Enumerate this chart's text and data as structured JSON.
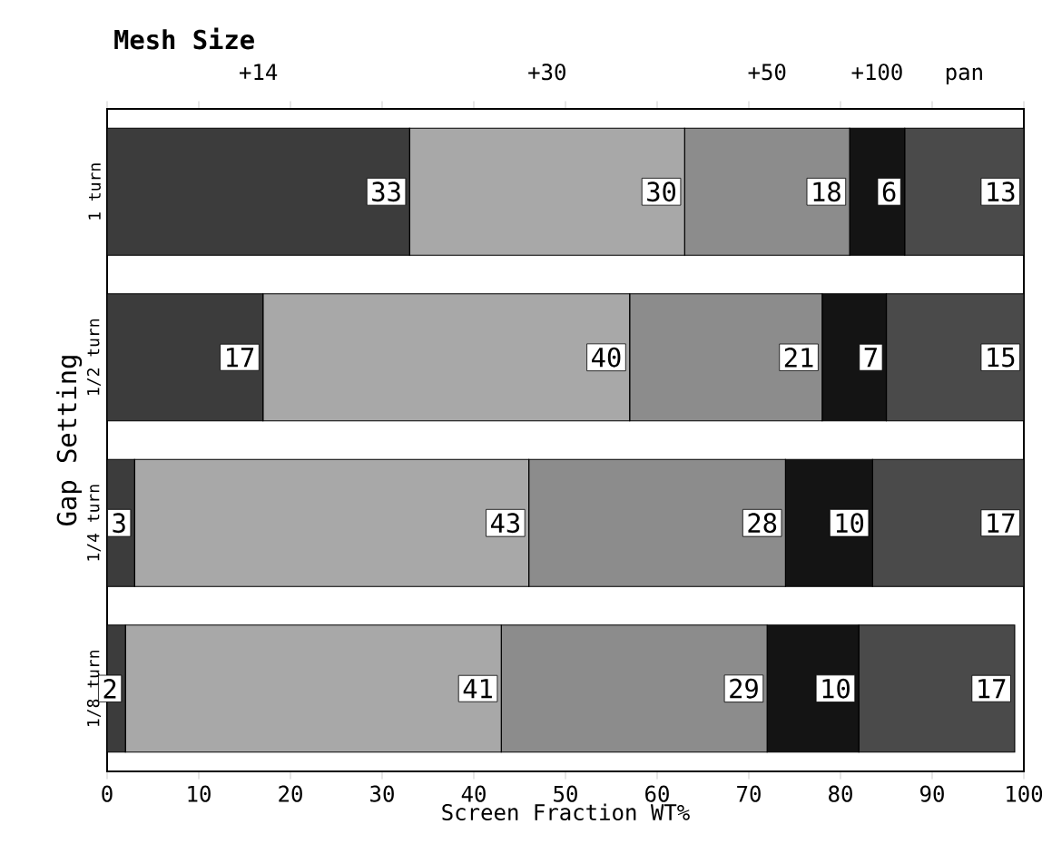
{
  "chart_data": {
    "type": "bar",
    "orientation": "horizontal",
    "stacked": true,
    "legend": "top",
    "legend_title": "Mesh Size",
    "xlabel": "Screen Fraction WT%",
    "ylabel": "Gap Setting",
    "categories": [
      "1 turn",
      "1/2 turn",
      "1/4 turn",
      "1/8 turn"
    ],
    "xlim": [
      0,
      100
    ],
    "xticks": [
      0,
      10,
      20,
      30,
      40,
      50,
      60,
      70,
      80,
      90,
      100
    ],
    "series": [
      {
        "name": "+14",
        "color": "#3c3c3c",
        "values": [
          33,
          17,
          3,
          2
        ],
        "value_labels": [
          "33",
          "17",
          "3",
          "2"
        ]
      },
      {
        "name": "+30",
        "color": "#a8a8a8",
        "values": [
          30,
          40,
          43,
          41
        ],
        "value_labels": [
          "30",
          "40",
          "43",
          "41"
        ]
      },
      {
        "name": "+50",
        "color": "#8c8c8c",
        "values": [
          18,
          21,
          28,
          29
        ],
        "value_labels": [
          "18",
          "21",
          "28",
          "29"
        ]
      },
      {
        "name": "+100",
        "color": "#141414",
        "values": [
          6,
          7,
          9.5,
          10
        ],
        "value_labels": [
          "6",
          "7",
          "10",
          "10"
        ]
      },
      {
        "name": "pan",
        "color": "#4a4a4a",
        "values": [
          13,
          15,
          16.5,
          17
        ],
        "value_labels": [
          "13",
          "15",
          "17",
          "17"
        ]
      }
    ]
  }
}
